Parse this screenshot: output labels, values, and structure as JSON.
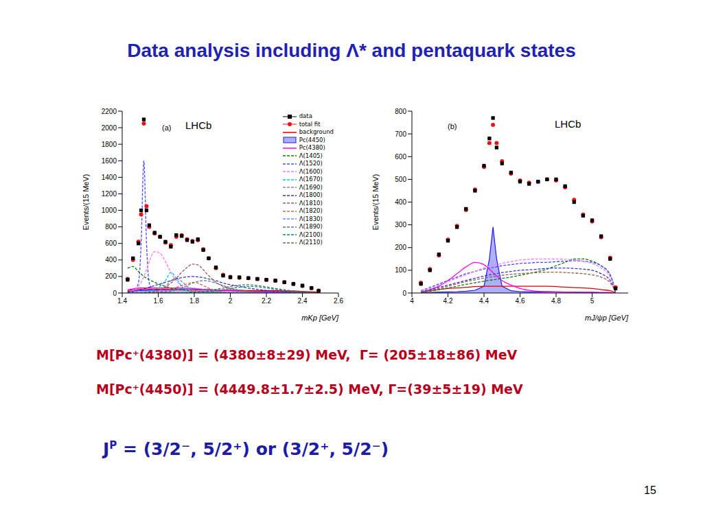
{
  "slide": {
    "title": "Data analysis including Λ* and pentaquark states",
    "results": [
      "M[Pc⁺(4380)] = (4380±8±29) MeV,  Γ= (205±18±86) MeV",
      "M[Pc⁺(4450)] = (4449.8±1.7±2.5) MeV, Γ=(39±5±19) MeV"
    ],
    "spin_parity": {
      "symbol": "J",
      "superscript": "P",
      "text": " = (3/2⁻, 5/2⁺) or (3/2⁺, 5/2⁻)"
    },
    "page": "15"
  },
  "chart_data": [
    {
      "type": "line",
      "annotations": [
        "(a)",
        "LHCb"
      ],
      "x_label": "mKp [GeV]",
      "y_label": "Events/(15 MeV)",
      "legend": "upper right",
      "xlim": [
        1.4,
        2.6
      ],
      "xticks": [
        1.4,
        1.6,
        1.8,
        2,
        2.2,
        2.4,
        2.6
      ],
      "ylim": [
        0,
        2200
      ],
      "yticks": [
        0,
        200,
        400,
        600,
        800,
        1000,
        1200,
        1400,
        1600,
        1800,
        2000,
        2200
      ],
      "x": [
        1.43,
        1.46,
        1.49,
        1.505,
        1.52,
        1.535,
        1.55,
        1.58,
        1.61,
        1.64,
        1.67,
        1.7,
        1.73,
        1.76,
        1.79,
        1.82,
        1.85,
        1.88,
        1.92,
        1.96,
        2.0,
        2.05,
        2.1,
        2.15,
        2.2,
        2.25,
        2.3,
        2.35,
        2.4,
        2.45,
        2.49
      ],
      "series": [
        {
          "name": "data",
          "color": "#000000",
          "type": "scatter",
          "marker": "square",
          "values": [
            160,
            420,
            600,
            1000,
            2100,
            1000,
            820,
            730,
            680,
            620,
            560,
            700,
            690,
            640,
            620,
            650,
            520,
            420,
            310,
            210,
            190,
            190,
            180,
            170,
            160,
            150,
            130,
            110,
            90,
            60,
            25
          ]
        },
        {
          "name": "total fit",
          "color": "#ee1111",
          "type": "scatter",
          "marker": "circle",
          "values": [
            170,
            400,
            620,
            950,
            2050,
            1050,
            800,
            720,
            680,
            610,
            580,
            680,
            700,
            650,
            630,
            640,
            530,
            420,
            300,
            220,
            195,
            185,
            180,
            170,
            160,
            150,
            130,
            110,
            85,
            60,
            30
          ]
        },
        {
          "name": "background",
          "color": "#dd0000",
          "line_style": "solid",
          "values": [
            30,
            40,
            45,
            45,
            45,
            45,
            45,
            45,
            45,
            45,
            45,
            40,
            40,
            40,
            40,
            40,
            40,
            40,
            35,
            35,
            35,
            35,
            30,
            30,
            30,
            30,
            25,
            25,
            20,
            15,
            10
          ]
        },
        {
          "name": "Pc(4450)",
          "color": "#1a1aff",
          "type": "area",
          "line_style": "solid",
          "values": [
            20,
            25,
            30,
            30,
            30,
            30,
            35,
            35,
            40,
            40,
            40,
            40,
            40,
            40,
            40,
            40,
            40,
            40,
            35,
            30,
            30,
            25,
            25,
            20,
            20,
            15,
            15,
            10,
            10,
            5,
            2
          ]
        },
        {
          "name": "Pc(4380)",
          "color": "#ff00ff",
          "line_style": "solid",
          "values": [
            40,
            50,
            60,
            60,
            60,
            60,
            60,
            60,
            60,
            60,
            60,
            60,
            60,
            55,
            55,
            50,
            45,
            40,
            35,
            30,
            30,
            25,
            20,
            20,
            15,
            15,
            10,
            10,
            5,
            5,
            2
          ]
        },
        {
          "name": "Λ(1405)",
          "color": "#008000",
          "line_style": "dashed",
          "values": [
            300,
            320,
            260,
            230,
            200,
            180,
            160,
            130,
            100,
            80,
            60,
            50,
            40,
            30,
            25,
            20,
            15,
            12,
            10,
            8,
            6,
            5,
            4,
            3,
            2,
            2,
            1,
            1,
            1,
            0,
            0
          ]
        },
        {
          "name": "Λ(1520)",
          "color": "#4a4aff",
          "line_style": "dashed",
          "values": [
            5,
            20,
            120,
            600,
            1600,
            600,
            120,
            25,
            10,
            5,
            2,
            0,
            0,
            0,
            0,
            0,
            0,
            0,
            0,
            0,
            0,
            0,
            0,
            0,
            0,
            0,
            0,
            0,
            0,
            0,
            0
          ]
        },
        {
          "name": "Λ(1600)",
          "color": "#ff77ff",
          "line_style": "dashed",
          "values": [
            10,
            30,
            80,
            130,
            200,
            280,
            380,
            500,
            480,
            380,
            250,
            150,
            90,
            50,
            30,
            20,
            10,
            5,
            0,
            0,
            0,
            0,
            0,
            0,
            0,
            0,
            0,
            0,
            0,
            0,
            0
          ]
        },
        {
          "name": "Λ(1670)",
          "color": "#00c8ff",
          "line_style": "dashed",
          "values": [
            0,
            0,
            0,
            5,
            10,
            15,
            20,
            40,
            80,
            150,
            250,
            180,
            80,
            30,
            10,
            5,
            2,
            0,
            0,
            0,
            0,
            0,
            0,
            0,
            0,
            0,
            0,
            0,
            0,
            0,
            0
          ]
        },
        {
          "name": "Λ(1690)",
          "color": "#8a8a8a",
          "line_style": "dashed",
          "values": [
            0,
            0,
            0,
            0,
            5,
            5,
            10,
            20,
            40,
            80,
            150,
            180,
            140,
            80,
            40,
            20,
            10,
            5,
            0,
            0,
            0,
            0,
            0,
            0,
            0,
            0,
            0,
            0,
            0,
            0,
            0
          ]
        },
        {
          "name": "Λ(1800)",
          "color": "#3535cc",
          "line_style": "dashed",
          "values": [
            10,
            20,
            30,
            40,
            50,
            60,
            70,
            90,
            110,
            130,
            150,
            170,
            185,
            195,
            200,
            195,
            185,
            170,
            150,
            120,
            100,
            80,
            60,
            45,
            30,
            20,
            15,
            10,
            5,
            3,
            1
          ]
        },
        {
          "name": "Λ(1810)",
          "color": "#9a5a5a",
          "line_style": "dashed",
          "values": [
            0,
            0,
            0,
            0,
            0,
            5,
            10,
            20,
            40,
            70,
            120,
            180,
            250,
            310,
            350,
            340,
            280,
            210,
            130,
            80,
            50,
            30,
            20,
            10,
            5,
            3,
            2,
            1,
            0,
            0,
            0
          ]
        },
        {
          "name": "Λ(1820)",
          "color": "#e06060",
          "line_style": "dashed",
          "values": [
            0,
            0,
            0,
            0,
            0,
            0,
            5,
            10,
            20,
            30,
            50,
            70,
            90,
            110,
            130,
            120,
            90,
            60,
            30,
            15,
            8,
            4,
            2,
            1,
            0,
            0,
            0,
            0,
            0,
            0,
            0
          ]
        },
        {
          "name": "Λ(1830)",
          "color": "#6a8cff",
          "line_style": "dashed",
          "values": [
            0,
            0,
            0,
            0,
            0,
            0,
            0,
            5,
            10,
            20,
            30,
            40,
            50,
            60,
            60,
            55,
            45,
            30,
            20,
            10,
            5,
            2,
            1,
            0,
            0,
            0,
            0,
            0,
            0,
            0,
            0
          ]
        },
        {
          "name": "Λ(1890)",
          "color": "#5a7a9a",
          "line_style": "dashed",
          "values": [
            0,
            0,
            0,
            0,
            0,
            0,
            0,
            0,
            5,
            10,
            20,
            40,
            60,
            90,
            120,
            140,
            150,
            145,
            120,
            90,
            60,
            35,
            20,
            10,
            5,
            2,
            1,
            0,
            0,
            0,
            0
          ]
        },
        {
          "name": "Λ(2100)",
          "color": "#008a8a",
          "line_style": "dashed",
          "values": [
            0,
            0,
            0,
            0,
            0,
            0,
            0,
            0,
            0,
            0,
            0,
            0,
            0,
            0,
            5,
            10,
            15,
            20,
            30,
            40,
            55,
            70,
            80,
            75,
            60,
            45,
            30,
            20,
            10,
            5,
            2
          ]
        },
        {
          "name": "Λ(2110)",
          "color": "#6a6a4a",
          "line_style": "dashed",
          "values": [
            0,
            0,
            0,
            0,
            0,
            0,
            0,
            0,
            0,
            0,
            0,
            0,
            0,
            5,
            10,
            15,
            20,
            30,
            45,
            60,
            80,
            95,
            100,
            90,
            75,
            55,
            40,
            25,
            15,
            8,
            3
          ]
        }
      ]
    },
    {
      "type": "line",
      "annotations": [
        "(b)",
        "LHCb"
      ],
      "x_label": "mJ/ψp [GeV]",
      "y_label": "Events/(15 MeV)",
      "xlim": [
        4,
        5.2
      ],
      "xticks": [
        4,
        4.2,
        4.4,
        4.6,
        4.8,
        5
      ],
      "ylim": [
        0,
        800
      ],
      "yticks": [
        0,
        100,
        200,
        300,
        400,
        500,
        600,
        700,
        800
      ],
      "x": [
        4.05,
        4.1,
        4.15,
        4.2,
        4.25,
        4.3,
        4.35,
        4.4,
        4.43,
        4.45,
        4.47,
        4.5,
        4.55,
        4.6,
        4.65,
        4.7,
        4.75,
        4.8,
        4.85,
        4.9,
        4.95,
        5.0,
        5.05,
        5.1,
        5.13
      ],
      "series": [
        {
          "name": "data",
          "color": "#000000",
          "type": "scatter",
          "marker": "square",
          "values": [
            40,
            100,
            170,
            230,
            290,
            370,
            450,
            560,
            680,
            770,
            640,
            570,
            530,
            490,
            480,
            490,
            500,
            500,
            470,
            400,
            340,
            320,
            250,
            150,
            20
          ]
        },
        {
          "name": "total fit",
          "color": "#ee1111",
          "type": "scatter",
          "marker": "circle",
          "values": [
            45,
            105,
            165,
            235,
            295,
            365,
            455,
            555,
            660,
            740,
            660,
            580,
            525,
            495,
            485,
            490,
            500,
            495,
            465,
            410,
            345,
            315,
            245,
            155,
            25
          ]
        },
        {
          "name": "background",
          "color": "#dd0000",
          "line_style": "solid",
          "values": [
            5,
            10,
            15,
            20,
            22,
            25,
            28,
            30,
            30,
            30,
            30,
            30,
            30,
            30,
            30,
            30,
            30,
            28,
            26,
            24,
            22,
            20,
            15,
            10,
            3
          ]
        },
        {
          "name": "Pc(4450)",
          "color": "#1a1aff",
          "type": "area",
          "line_style": "solid",
          "values": [
            2,
            3,
            4,
            5,
            6,
            8,
            12,
            30,
            150,
            290,
            150,
            30,
            10,
            6,
            5,
            5,
            5,
            5,
            4,
            4,
            3,
            3,
            2,
            2,
            1
          ]
        },
        {
          "name": "Pc(4380)",
          "color": "#ff00ff",
          "line_style": "solid",
          "values": [
            5,
            15,
            30,
            55,
            85,
            115,
            135,
            125,
            105,
            90,
            75,
            55,
            35,
            20,
            12,
            8,
            6,
            5,
            4,
            4,
            3,
            3,
            2,
            2,
            1
          ]
        },
        {
          "name": "Λ(1405)",
          "color": "#008000",
          "line_style": "dashed",
          "values": [
            3,
            8,
            15,
            22,
            30,
            38,
            45,
            52,
            56,
            58,
            60,
            64,
            70,
            78,
            86,
            95,
            105,
            120,
            135,
            150,
            150,
            140,
            120,
            80,
            10
          ]
        },
        {
          "name": "Λ(1520)",
          "color": "#4a4aff",
          "line_style": "dashed",
          "values": [
            10,
            25,
            40,
            55,
            70,
            85,
            95,
            105,
            110,
            112,
            115,
            120,
            125,
            130,
            132,
            135,
            135,
            138,
            140,
            142,
            140,
            135,
            120,
            80,
            10
          ]
        },
        {
          "name": "Λ(1600)",
          "color": "#ff77ff",
          "line_style": "dashed",
          "values": [
            8,
            20,
            35,
            50,
            65,
            80,
            95,
            110,
            118,
            122,
            125,
            130,
            138,
            145,
            148,
            150,
            150,
            150,
            148,
            145,
            140,
            130,
            110,
            70,
            8
          ]
        },
        {
          "name": "Λ(1800)",
          "color": "#3535cc",
          "line_style": "dashed",
          "values": [
            5,
            15,
            25,
            35,
            45,
            55,
            65,
            75,
            80,
            82,
            85,
            90,
            95,
            100,
            102,
            105,
            108,
            110,
            110,
            108,
            105,
            100,
            85,
            55,
            5
          ]
        },
        {
          "name": "Λ(1810)",
          "color": "#9a5a5a",
          "line_style": "dashed",
          "values": [
            5,
            12,
            20,
            30,
            40,
            50,
            58,
            65,
            70,
            72,
            74,
            78,
            82,
            85,
            88,
            90,
            92,
            92,
            90,
            88,
            85,
            80,
            70,
            45,
            5
          ]
        }
      ]
    }
  ]
}
